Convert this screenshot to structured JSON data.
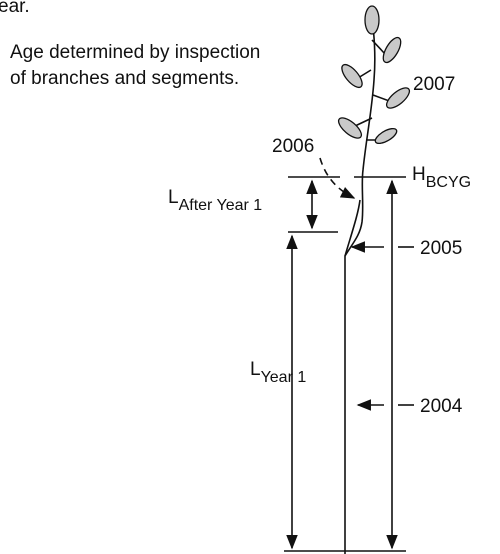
{
  "caption_fragment": "ear.",
  "note": [
    "Age determined by inspection",
    "of branches and segments."
  ],
  "years": {
    "y2007": "2007",
    "y2006": "2006",
    "y2005": "2005",
    "y2004": "2004"
  },
  "measures": {
    "h_bcyg": {
      "symbol": "H",
      "subscript": "BCYG"
    },
    "l_after_year1": {
      "symbol": "L",
      "subscript": "After Year 1"
    },
    "l_year1": {
      "symbol": "L",
      "subscript": "Year 1"
    }
  }
}
